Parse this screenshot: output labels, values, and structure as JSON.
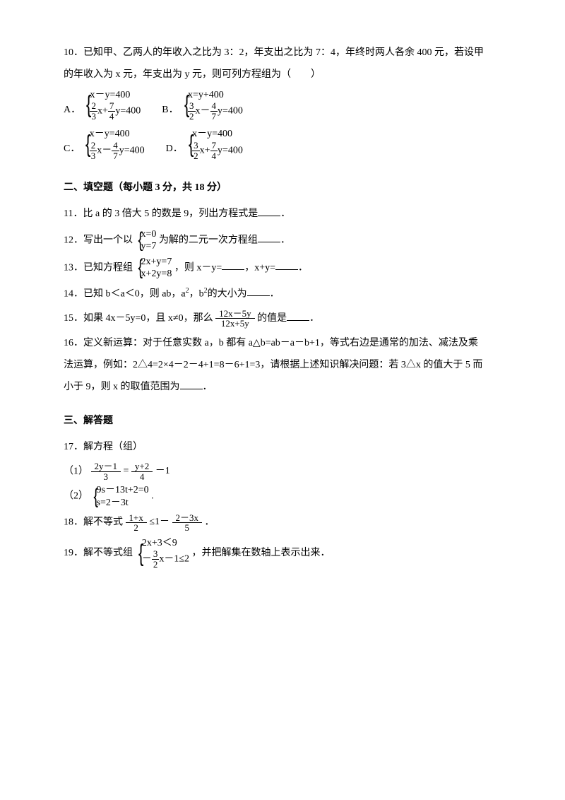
{
  "q10": {
    "num": "10．",
    "text1": "已知甲、乙两人的年收入之比为 3：2，年支出之比为 7：4，年终时两人各余 400 元，若设甲",
    "text2": "的年收入为 x 元，年支出为 y 元，则可列方程组为（　　）",
    "opts": {
      "A": {
        "label": "A．",
        "r1a": "x－y=400",
        "r2a_f1n": "2",
        "r2a_f1d": "3",
        "r2a_mid": "x+",
        "r2a_f2n": "7",
        "r2a_f2d": "4",
        "r2a_tail": "y=400"
      },
      "B": {
        "label": "B．",
        "r1b": "x=y+400",
        "r2b_f1n": "3",
        "r2b_f1d": "2",
        "r2b_mid": "x－",
        "r2b_f2n": "4",
        "r2b_f2d": "7",
        "r2b_tail": "y=400"
      },
      "C": {
        "label": "C．",
        "r1c": "x－y=400",
        "r2c_f1n": "2",
        "r2c_f1d": "3",
        "r2c_mid": "x－",
        "r2c_f2n": "4",
        "r2c_f2d": "7",
        "r2c_tail": "y=400"
      },
      "D": {
        "label": "D．",
        "r1d": "x－y=400",
        "r2d_f1n": "3",
        "r2d_f1d": "2",
        "r2d_mid": "x+",
        "r2d_f2n": "7",
        "r2d_f2d": "4",
        "r2d_tail": "y=400"
      }
    }
  },
  "section2": "二、填空题（每小题 3 分，共 18 分）",
  "q11": {
    "num": "11．",
    "text": "比 a 的 3 倍大 5 的数是 9，列出方程式是",
    "tail": "．"
  },
  "q12": {
    "num": "12．",
    "lead": "写出一个以",
    "sys_r1": "x=0",
    "sys_r2": "y=7",
    "after": "为解的二元一次方程组",
    "tail": "．"
  },
  "q13": {
    "num": "13．",
    "lead": "已知方程组",
    "sys_r1": "2x+y=7",
    "sys_r2": "x+2y=8",
    "after1": "，则 x－y=",
    "after2": "，x+y=",
    "tail": "．"
  },
  "q14": {
    "num": "14．",
    "text": "已知 b＜a＜0，则 ab，a",
    "sq1": "2",
    "mid": "，b",
    "sq2": "2",
    "after": "的大小为",
    "tail": "．"
  },
  "q15": {
    "num": "15．",
    "lead": "如果 4x－5y=0，且 x≠0，那么",
    "frac_n": "12x－5y",
    "frac_d": "12x+5y",
    "after": " 的值是",
    "tail": "．"
  },
  "q16": {
    "num": "16．",
    "l1": "定义新运算：对于任意实数 a，b 都有 a△b=ab－a－b+1，等式右边是通常的加法、减法及乘",
    "l2": "法运算，例如：2△4=2×4－2－4+1=8－6+1=3，请根据上述知识解决问题：若 3△x 的值大于 5 而",
    "l3": "小于 9，则 x 的取值范围为",
    "tail": "．"
  },
  "section3": "三、解答题",
  "q17": {
    "num": "17．",
    "text": "解方程（组）",
    "p1_label": "（1）",
    "p1_f1n": "2y－1",
    "p1_f1d": "3",
    "p1_eq": "=",
    "p1_f2n": "y+2",
    "p1_f2d": "4",
    "p1_tail": "－1",
    "p2_label": "（2）",
    "p2_r1": "9s－13t+2=0",
    "p2_r2": "s=2－3t",
    "p2_tail": "."
  },
  "q18": {
    "num": "18．",
    "lead": "解不等式",
    "f1n": "1+x",
    "f1d": "2",
    "mid": " ≤1－",
    "f2n": "2－3x",
    "f2d": "5",
    "tail": "．"
  },
  "q19": {
    "num": "19．",
    "lead": "解不等式组",
    "r1": "2x+3＜9",
    "r2_pre": "－",
    "r2_fn": "3",
    "r2_fd": "2",
    "r2_post": "x－1≤2",
    "after": "，并把解集在数轴上表示出来．"
  }
}
